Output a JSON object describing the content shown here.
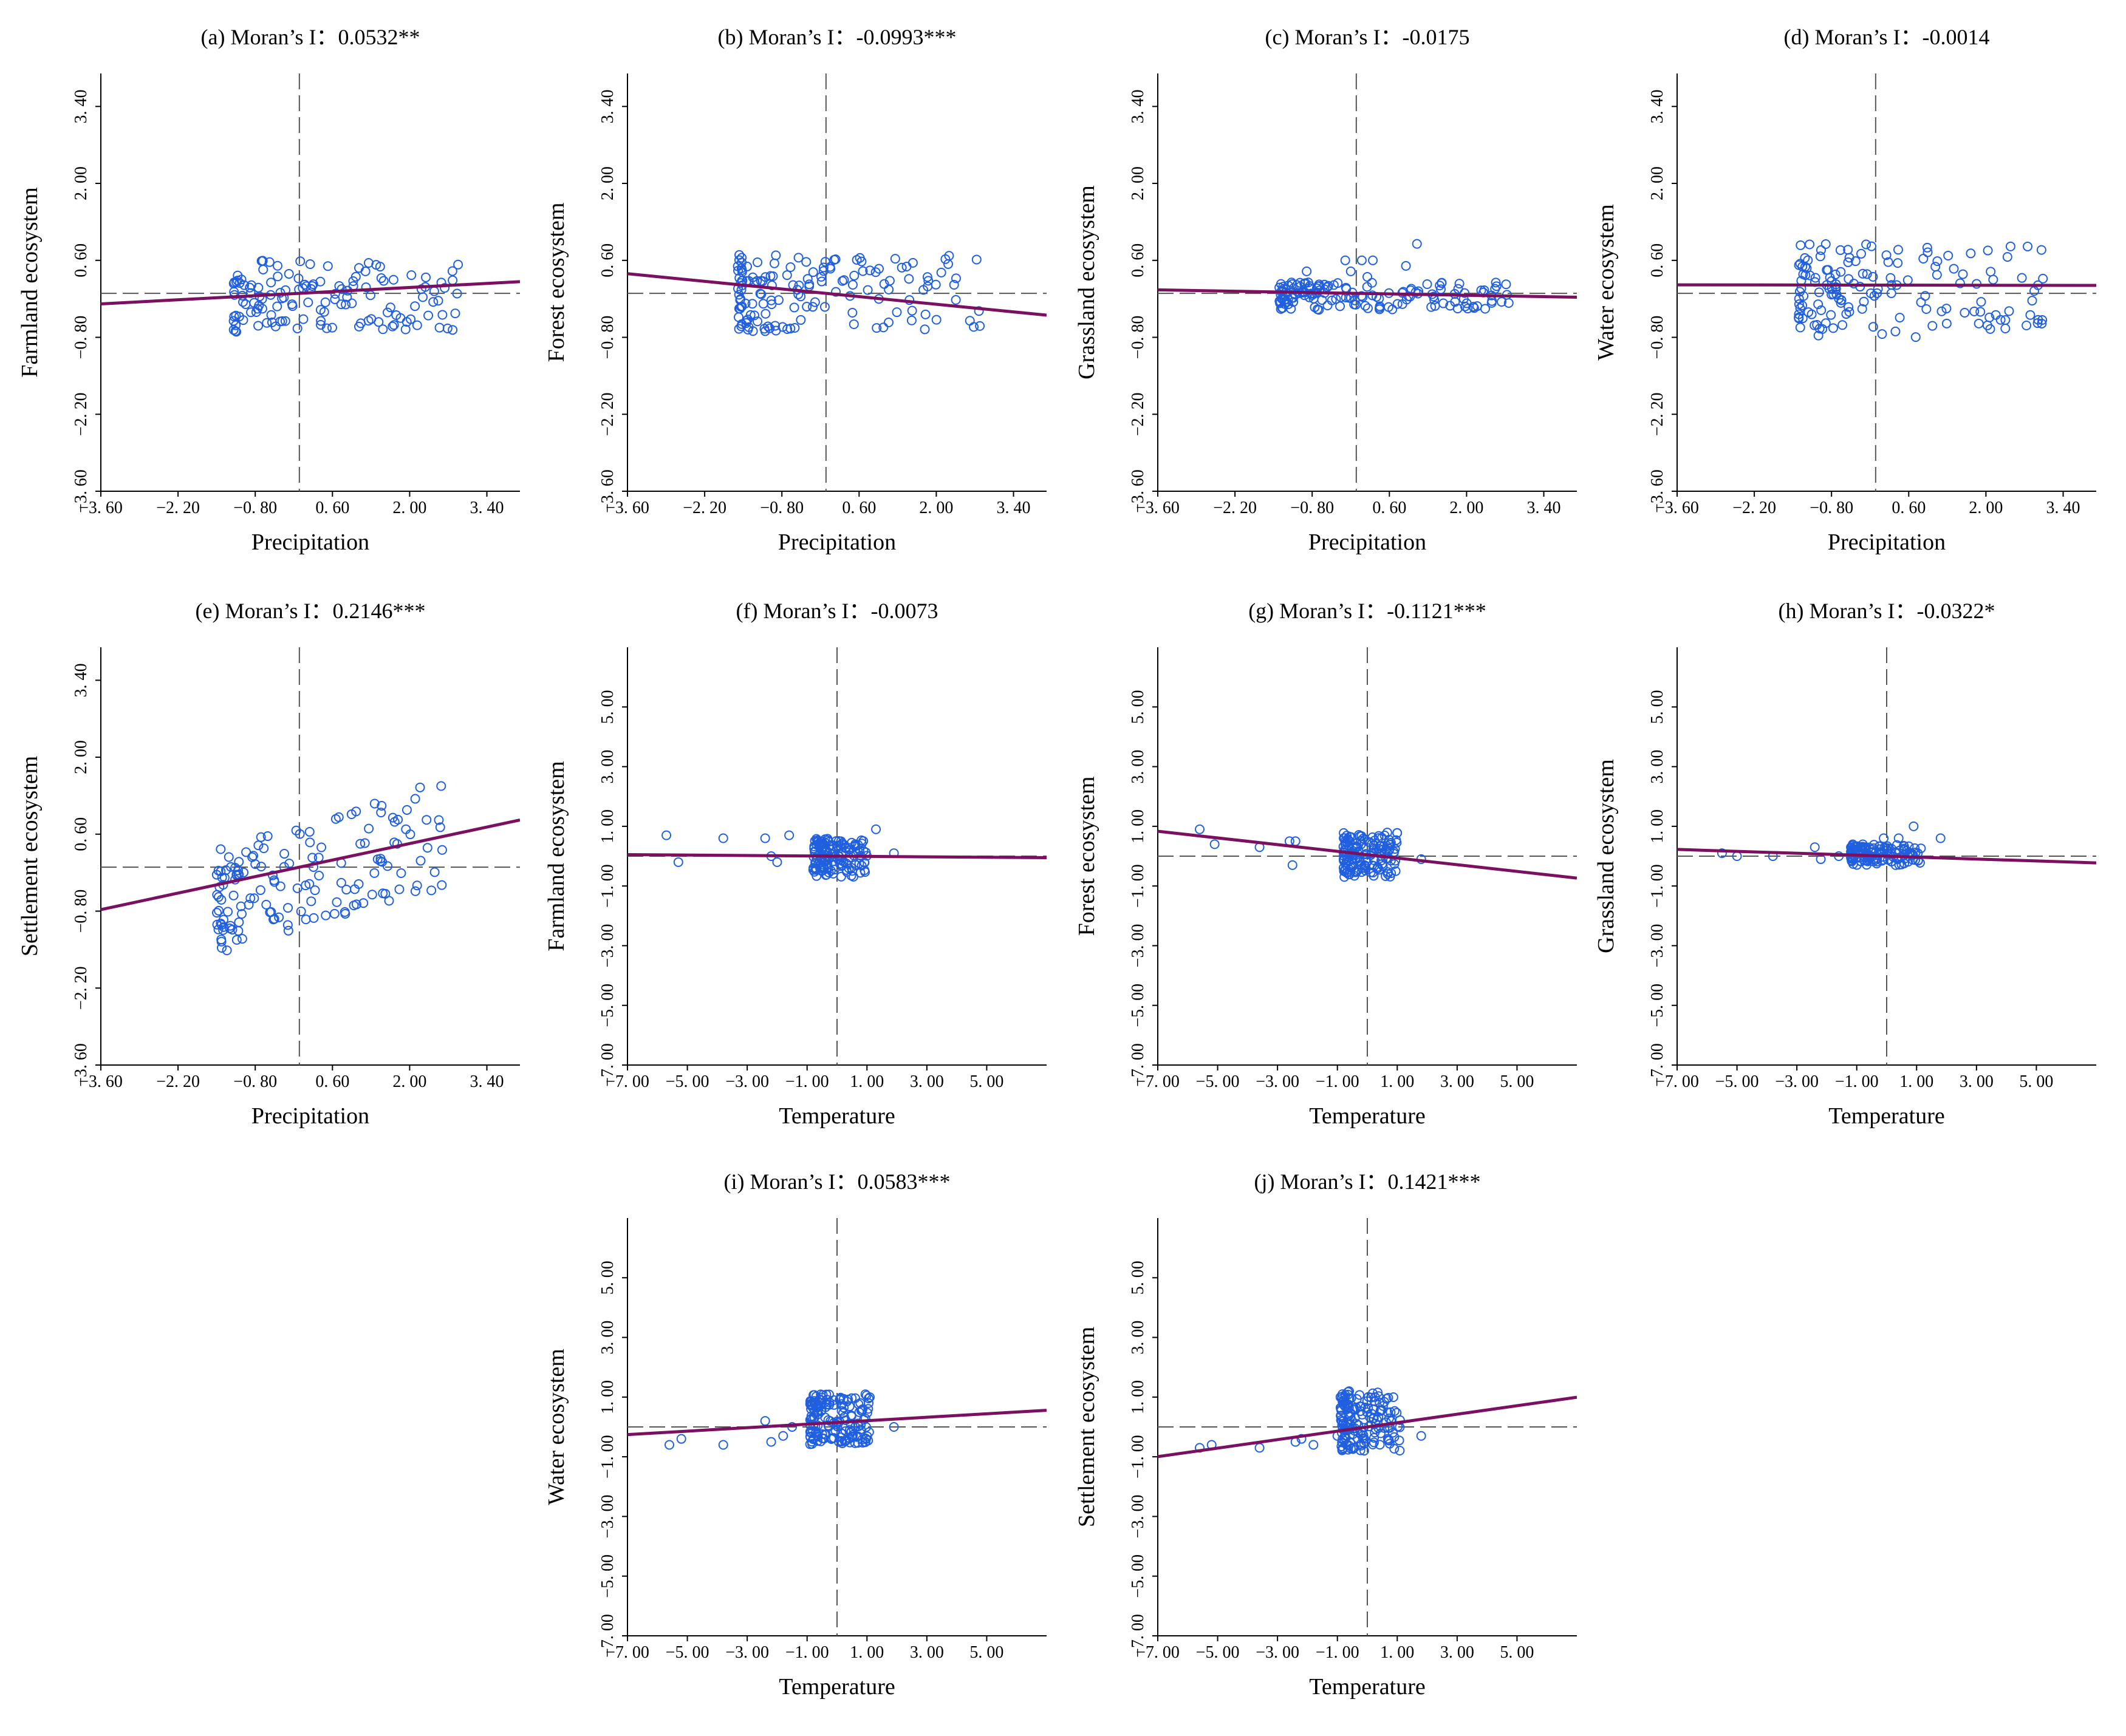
{
  "colors": {
    "point": "#1f5fe0",
    "fit_line": "#7b1060",
    "axis": "#000000",
    "guide": "#555555"
  },
  "chart_data": [
    {
      "type": "scatter",
      "panel": "a",
      "title": "(a) Moran’s I：0.0532**",
      "xlabel": "Precipitation",
      "ylabel": "Farmland ecosystem",
      "xlim": [
        -3.6,
        4.0
      ],
      "ylim": [
        -3.6,
        4.0
      ],
      "xticks": [
        -3.6,
        -2.2,
        -0.8,
        0.6,
        2.0,
        3.4
      ],
      "xtick_labels": [
        "−3. 60",
        "−2. 20",
        "−0. 80",
        "0. 60",
        "2. 00",
        "3. 40"
      ],
      "yticks": [
        -3.6,
        -2.2,
        -0.8,
        0.6,
        2.0,
        3.4
      ],
      "ytick_labels": [
        "−3. 60",
        "−2. 20",
        "−0. 80",
        "0. 60",
        "2. 00",
        "3. 40"
      ],
      "fit": {
        "slope": 0.0532,
        "intercept": 0.0
      },
      "cluster": {
        "x": [
          -1.2,
          2.9
        ],
        "y": [
          -0.7,
          0.6
        ],
        "n": 140,
        "seed": 11
      }
    },
    {
      "type": "scatter",
      "panel": "b",
      "title": "(b) Moran’s I：-0.0993***",
      "xlabel": "Precipitation",
      "ylabel": "Forest ecosystem",
      "xlim": [
        -3.6,
        4.0
      ],
      "ylim": [
        -3.6,
        4.0
      ],
      "xticks": [
        -3.6,
        -2.2,
        -0.8,
        0.6,
        2.0,
        3.4
      ],
      "xtick_labels": [
        "−3. 60",
        "−2. 20",
        "−0. 80",
        "0. 60",
        "2. 00",
        "3. 40"
      ],
      "yticks": [
        -3.6,
        -2.2,
        -0.8,
        0.6,
        2.0,
        3.4
      ],
      "ytick_labels": [
        "−3. 60",
        "−2. 20",
        "−0. 80",
        "0. 60",
        "2. 00",
        "3. 40"
      ],
      "fit": {
        "slope": -0.0993,
        "intercept": 0.0
      },
      "cluster": {
        "x": [
          -1.6,
          2.8
        ],
        "y": [
          -0.7,
          0.7
        ],
        "n": 150,
        "seed": 23
      }
    },
    {
      "type": "scatter",
      "panel": "c",
      "title": "(c) Moran’s I：-0.0175",
      "xlabel": "Precipitation",
      "ylabel": "Grassland ecosystem",
      "xlim": [
        -3.6,
        4.0
      ],
      "ylim": [
        -3.6,
        4.0
      ],
      "xticks": [
        -3.6,
        -2.2,
        -0.8,
        0.6,
        2.0,
        3.4
      ],
      "xtick_labels": [
        "−3. 60",
        "−2. 20",
        "−0. 80",
        "0. 60",
        "2. 00",
        "3. 40"
      ],
      "yticks": [
        -3.6,
        -2.2,
        -0.8,
        0.6,
        2.0,
        3.4
      ],
      "ytick_labels": [
        "−3. 60",
        "−2. 20",
        "−0. 80",
        "0. 60",
        "2. 00",
        "3. 40"
      ],
      "fit": {
        "slope": -0.0175,
        "intercept": 0.0
      },
      "cluster": {
        "x": [
          -1.4,
          2.9
        ],
        "y": [
          -0.3,
          0.2
        ],
        "n": 150,
        "seed": 37
      },
      "extra_points": [
        [
          -0.9,
          0.4
        ],
        [
          -0.2,
          0.6
        ],
        [
          0.1,
          0.6
        ],
        [
          0.3,
          0.6
        ],
        [
          0.9,
          0.5
        ],
        [
          1.1,
          0.9
        ],
        [
          -0.1,
          0.4
        ],
        [
          0.2,
          0.3
        ]
      ]
    },
    {
      "type": "scatter",
      "panel": "d",
      "title": "(d) Moran’s I：-0.0014",
      "xlabel": "Precipitation",
      "ylabel": "Water ecosystem",
      "xlim": [
        -3.6,
        4.0
      ],
      "ylim": [
        -3.6,
        4.0
      ],
      "xticks": [
        -3.6,
        -2.2,
        -0.8,
        0.6,
        2.0,
        3.4
      ],
      "xtick_labels": [
        "−3. 60",
        "−2. 20",
        "−0. 80",
        "0. 60",
        "2. 00",
        "3. 40"
      ],
      "yticks": [
        -3.6,
        -2.2,
        -0.8,
        0.6,
        2.0,
        3.4
      ],
      "ytick_labels": [
        "−3. 60",
        "−2. 20",
        "−0. 80",
        "0. 60",
        "2. 00",
        "3. 40"
      ],
      "fit": {
        "slope": -0.0014,
        "intercept": 0.15
      },
      "cluster": {
        "x": [
          -1.4,
          3.1
        ],
        "y": [
          -0.8,
          0.9
        ],
        "n": 150,
        "seed": 41
      }
    },
    {
      "type": "scatter",
      "panel": "e",
      "title": "(e) Moran’s I：0.2146***",
      "xlabel": "Precipitation",
      "ylabel": "Settlement ecosystem",
      "xlim": [
        -3.6,
        4.0
      ],
      "ylim": [
        -3.6,
        4.0
      ],
      "xticks": [
        -3.6,
        -2.2,
        -0.8,
        0.6,
        2.0,
        3.4
      ],
      "xtick_labels": [
        "−3. 60",
        "−2. 20",
        "−0. 80",
        "0. 60",
        "2. 00",
        "3. 40"
      ],
      "yticks": [
        -3.6,
        -2.2,
        -0.8,
        0.6,
        2.0,
        3.4
      ],
      "ytick_labels": [
        "−3. 60",
        "−2. 20",
        "−0. 80",
        "0. 60",
        "2. 00",
        "3. 40"
      ],
      "fit": {
        "slope": 0.2146,
        "intercept": 0.0
      },
      "cluster": {
        "x": [
          -1.5,
          2.6
        ],
        "y": [
          -1.0,
          1.0
        ],
        "n": 150,
        "seed": 53,
        "trend": 0.3
      }
    },
    {
      "type": "scatter",
      "panel": "f",
      "title": "(f) Moran’s I：-0.0073",
      "xlabel": "Temperature",
      "ylabel": "Farmland ecosystem",
      "xlim": [
        -7.0,
        7.0
      ],
      "ylim": [
        -7.0,
        7.0
      ],
      "xticks": [
        -7,
        -5,
        -3,
        -1,
        1,
        3,
        5
      ],
      "xtick_labels": [
        "−7. 00",
        "−5. 00",
        "−3. 00",
        "−1. 00",
        "1. 00",
        "3. 00",
        "5. 00"
      ],
      "yticks": [
        -7,
        -5,
        -3,
        -1,
        1,
        3,
        5
      ],
      "ytick_labels": [
        "−7. 00",
        "−5. 00",
        "−3. 00",
        "−1. 00",
        "1. 00",
        "3. 00",
        "5. 00"
      ],
      "fit": {
        "slope": -0.0073,
        "intercept": 0.0
      },
      "cluster": {
        "x": [
          -0.8,
          1.0
        ],
        "y": [
          -0.7,
          0.6
        ],
        "n": 140,
        "seed": 61
      },
      "extra_points": [
        [
          -5.7,
          0.7
        ],
        [
          -5.3,
          -0.2
        ],
        [
          -3.8,
          0.6
        ],
        [
          -2.4,
          0.6
        ],
        [
          -2.0,
          -0.2
        ],
        [
          -1.6,
          0.7
        ],
        [
          -2.2,
          0.0
        ],
        [
          1.3,
          0.9
        ],
        [
          1.9,
          0.1
        ]
      ]
    },
    {
      "type": "scatter",
      "panel": "g",
      "title": "(g) Moran’s I：-0.1121***",
      "xlabel": "Temperature",
      "ylabel": "Forest ecosystem",
      "xlim": [
        -7.0,
        7.0
      ],
      "ylim": [
        -7.0,
        7.0
      ],
      "xticks": [
        -7,
        -5,
        -3,
        -1,
        1,
        3,
        5
      ],
      "xtick_labels": [
        "−7. 00",
        "−5. 00",
        "−3. 00",
        "−1. 00",
        "1. 00",
        "3. 00",
        "5. 00"
      ],
      "yticks": [
        -7,
        -5,
        -3,
        -1,
        1,
        3,
        5
      ],
      "ytick_labels": [
        "−7. 00",
        "−5. 00",
        "−3. 00",
        "−1. 00",
        "1. 00",
        "3. 00",
        "5. 00"
      ],
      "fit": {
        "slope": -0.1121,
        "intercept": 0.05
      },
      "cluster": {
        "x": [
          -0.8,
          1.0
        ],
        "y": [
          -0.7,
          0.8
        ],
        "n": 150,
        "seed": 73
      },
      "extra_points": [
        [
          -5.6,
          0.9
        ],
        [
          -5.1,
          0.4
        ],
        [
          -3.6,
          0.3
        ],
        [
          -2.6,
          0.5
        ],
        [
          -2.4,
          0.5
        ],
        [
          -2.5,
          -0.3
        ],
        [
          1.8,
          -0.1
        ]
      ]
    },
    {
      "type": "scatter",
      "panel": "h",
      "title": "(h) Moran’s I：-0.0322*",
      "xlabel": "Temperature",
      "ylabel": "Grassland ecosystem",
      "xlim": [
        -7.0,
        7.0
      ],
      "ylim": [
        -7.0,
        7.0
      ],
      "xticks": [
        -7,
        -5,
        -3,
        -1,
        1,
        3,
        5
      ],
      "xtick_labels": [
        "−7. 00",
        "−5. 00",
        "−3. 00",
        "−1. 00",
        "1. 00",
        "3. 00",
        "5. 00"
      ],
      "yticks": [
        -7,
        -5,
        -3,
        -1,
        1,
        3,
        5
      ],
      "ytick_labels": [
        "−7. 00",
        "−5. 00",
        "−3. 00",
        "−1. 00",
        "1. 00",
        "3. 00",
        "5. 00"
      ],
      "fit": {
        "slope": -0.0322,
        "intercept": 0.0
      },
      "cluster": {
        "x": [
          -1.2,
          1.2
        ],
        "y": [
          -0.3,
          0.4
        ],
        "n": 140,
        "seed": 89
      },
      "extra_points": [
        [
          -5.5,
          0.1
        ],
        [
          -5.0,
          0.0
        ],
        [
          -3.8,
          0.0
        ],
        [
          -2.4,
          0.3
        ],
        [
          -2.2,
          -0.1
        ],
        [
          -1.6,
          0.0
        ],
        [
          0.9,
          1.0
        ],
        [
          1.8,
          0.6
        ],
        [
          -0.1,
          0.6
        ],
        [
          0.4,
          0.6
        ]
      ]
    },
    {
      "type": "scatter",
      "panel": "i",
      "title": "(i) Moran’s I：0.0583***",
      "xlabel": "Temperature",
      "ylabel": "Water ecosystem",
      "xlim": [
        -7.0,
        7.0
      ],
      "ylim": [
        -7.0,
        7.0
      ],
      "xticks": [
        -7,
        -5,
        -3,
        -1,
        1,
        3,
        5
      ],
      "xtick_labels": [
        "−7. 00",
        "−5. 00",
        "−3. 00",
        "−1. 00",
        "1. 00",
        "3. 00",
        "5. 00"
      ],
      "yticks": [
        -7,
        -5,
        -3,
        -1,
        1,
        3,
        5
      ],
      "ytick_labels": [
        "−7. 00",
        "−5. 00",
        "−3. 00",
        "−1. 00",
        "1. 00",
        "3. 00",
        "5. 00"
      ],
      "fit": {
        "slope": 0.0583,
        "intercept": 0.15
      },
      "cluster": {
        "x": [
          -0.9,
          1.1
        ],
        "y": [
          -0.6,
          1.1
        ],
        "n": 160,
        "seed": 97
      },
      "extra_points": [
        [
          -5.6,
          -0.6
        ],
        [
          -5.2,
          -0.4
        ],
        [
          -3.8,
          -0.6
        ],
        [
          -2.4,
          0.2
        ],
        [
          -2.2,
          -0.5
        ],
        [
          -1.8,
          -0.3
        ],
        [
          -1.5,
          0.0
        ],
        [
          1.9,
          0.0
        ]
      ]
    },
    {
      "type": "scatter",
      "panel": "j",
      "title": "(j) Moran’s I：0.1421***",
      "xlabel": "Temperature",
      "ylabel": "Settlement ecosystem",
      "xlim": [
        -7.0,
        7.0
      ],
      "ylim": [
        -7.0,
        7.0
      ],
      "xticks": [
        -7,
        -5,
        -3,
        -1,
        1,
        3,
        5
      ],
      "xtick_labels": [
        "−7. 00",
        "−5. 00",
        "−3. 00",
        "−1. 00",
        "1. 00",
        "3. 00",
        "5. 00"
      ],
      "yticks": [
        -7,
        -5,
        -3,
        -1,
        1,
        3,
        5
      ],
      "ytick_labels": [
        "−7. 00",
        "−5. 00",
        "−3. 00",
        "−1. 00",
        "1. 00",
        "3. 00",
        "5. 00"
      ],
      "fit": {
        "slope": 0.1421,
        "intercept": 0.0
      },
      "cluster": {
        "x": [
          -0.9,
          1.1
        ],
        "y": [
          -0.8,
          1.2
        ],
        "n": 160,
        "seed": 101
      },
      "extra_points": [
        [
          -5.6,
          -0.7
        ],
        [
          -5.2,
          -0.6
        ],
        [
          -3.6,
          -0.7
        ],
        [
          -2.4,
          -0.5
        ],
        [
          -2.2,
          -0.4
        ],
        [
          -1.8,
          -0.6
        ],
        [
          -1.0,
          -0.3
        ],
        [
          1.8,
          -0.3
        ]
      ]
    }
  ]
}
